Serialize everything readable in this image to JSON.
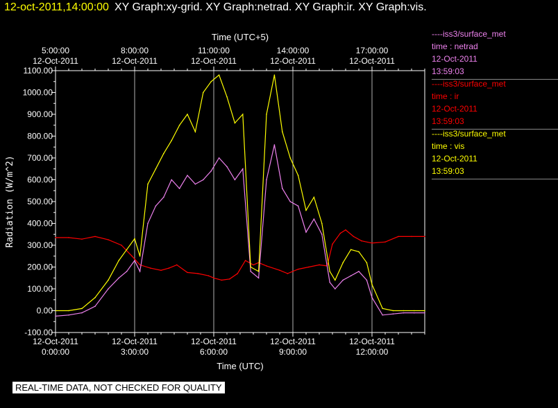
{
  "header": {
    "datetime": "12-oct-2011,14:00:00",
    "graphs": "XY Graph:xy-grid.  XY Graph:netrad.  XY Graph:ir.  XY Graph:vis."
  },
  "notice": "REAL-TIME DATA, NOT CHECKED FOR QUALITY",
  "legend": [
    {
      "source": "----iss3/surface_met",
      "var": "time : netrad",
      "date": "12-Oct-2011",
      "time": "13:59:03",
      "color": "#ee82ee"
    },
    {
      "source": "----iss3/surface_met",
      "var": "time : ir",
      "date": "12-Oct-2011",
      "time": "13:59:03",
      "color": "#ff0000"
    },
    {
      "source": "----iss3/surface_met",
      "var": "time : vis",
      "date": "12-Oct-2011",
      "time": "13:59:03",
      "color": "#ffff00"
    }
  ],
  "chart_data": {
    "type": "line",
    "xlabel": "Time (UTC)",
    "x2label": "Time (UTC+5)",
    "ylabel": "Radiation (W/m^2)",
    "xlim": [
      0.0,
      14.0
    ],
    "ylim": [
      -100,
      1100
    ],
    "grid": true,
    "bottom_ticks": [
      {
        "x": 0,
        "date": "12-Oct-2011",
        "time": "0:00:00"
      },
      {
        "x": 3,
        "date": "12-Oct-2011",
        "time": "3:00:00"
      },
      {
        "x": 6,
        "date": "12-Oct-2011",
        "time": "6:00:00"
      },
      {
        "x": 9,
        "date": "12-Oct-2011",
        "time": "9:00:00"
      },
      {
        "x": 12,
        "date": "12-Oct-2011",
        "time": "12:00:00"
      }
    ],
    "top_ticks": [
      {
        "x": 0,
        "time": "5:00:00",
        "date": "12-Oct-2011"
      },
      {
        "x": 3,
        "time": "8:00:00",
        "date": "12-Oct-2011"
      },
      {
        "x": 6,
        "time": "11:00:00",
        "date": "12-Oct-2011"
      },
      {
        "x": 9,
        "time": "14:00:00",
        "date": "12-Oct-2011"
      },
      {
        "x": 12,
        "time": "17:00:00",
        "date": "12-Oct-2011"
      }
    ],
    "y_ticks": [
      "-100.00",
      "0.00",
      "100.00",
      "200.00",
      "300.00",
      "400.00",
      "500.00",
      "600.00",
      "700.00",
      "800.00",
      "900.00",
      "1000.00",
      "1100.00"
    ],
    "series": [
      {
        "name": "time : ir",
        "color": "#ff0000",
        "x": [
          0.0,
          0.5,
          1.0,
          1.5,
          2.0,
          2.5,
          2.9,
          3.2,
          3.6,
          4.0,
          4.3,
          4.6,
          5.0,
          5.4,
          5.8,
          6.0,
          6.3,
          6.6,
          6.9,
          7.2,
          7.5,
          7.7,
          8.0,
          8.5,
          8.8,
          9.2,
          9.6,
          10.0,
          10.3,
          10.5,
          10.8,
          11.0,
          11.3,
          11.6,
          12.0,
          12.5,
          13.0,
          13.5,
          14.0
        ],
        "y": [
          335,
          335,
          328,
          340,
          325,
          300,
          250,
          210,
          195,
          185,
          195,
          210,
          175,
          170,
          160,
          150,
          140,
          145,
          170,
          230,
          210,
          220,
          205,
          185,
          170,
          190,
          200,
          210,
          205,
          305,
          355,
          370,
          340,
          320,
          310,
          315,
          340,
          340,
          340
        ]
      },
      {
        "name": "time : netrad",
        "color": "#ee82ee",
        "x": [
          0.0,
          0.5,
          1.0,
          1.5,
          2.0,
          2.4,
          2.7,
          3.0,
          3.2,
          3.5,
          3.8,
          4.1,
          4.4,
          4.7,
          5.0,
          5.3,
          5.6,
          5.9,
          6.2,
          6.5,
          6.8,
          7.1,
          7.4,
          7.7,
          8.0,
          8.3,
          8.6,
          8.9,
          9.2,
          9.5,
          9.8,
          10.1,
          10.4,
          10.6,
          10.9,
          11.2,
          11.5,
          11.8,
          12.0,
          12.4,
          12.8,
          13.2,
          13.6,
          14.0
        ],
        "y": [
          -25,
          -20,
          -10,
          20,
          100,
          150,
          180,
          230,
          180,
          400,
          480,
          520,
          600,
          560,
          620,
          580,
          600,
          640,
          700,
          660,
          600,
          650,
          180,
          150,
          600,
          760,
          560,
          500,
          480,
          360,
          420,
          350,
          130,
          100,
          140,
          160,
          180,
          140,
          60,
          -20,
          -15,
          -10,
          -10,
          -10
        ]
      },
      {
        "name": "time : vis",
        "color": "#ffff00",
        "x": [
          0.0,
          0.5,
          1.0,
          1.5,
          2.0,
          2.4,
          2.7,
          3.0,
          3.2,
          3.5,
          3.8,
          4.1,
          4.4,
          4.7,
          5.0,
          5.3,
          5.6,
          5.9,
          6.2,
          6.5,
          6.8,
          7.1,
          7.4,
          7.7,
          8.0,
          8.3,
          8.6,
          8.9,
          9.2,
          9.5,
          9.8,
          10.1,
          10.4,
          10.6,
          10.9,
          11.2,
          11.5,
          11.8,
          12.0,
          12.4,
          12.8,
          13.2,
          13.6,
          14.0
        ],
        "y": [
          0,
          0,
          10,
          60,
          140,
          230,
          280,
          330,
          250,
          580,
          650,
          720,
          780,
          850,
          900,
          820,
          1000,
          1050,
          1080,
          980,
          860,
          900,
          200,
          180,
          900,
          1080,
          820,
          700,
          620,
          460,
          520,
          400,
          180,
          140,
          220,
          280,
          270,
          220,
          120,
          10,
          0,
          0,
          0,
          0
        ]
      }
    ]
  }
}
